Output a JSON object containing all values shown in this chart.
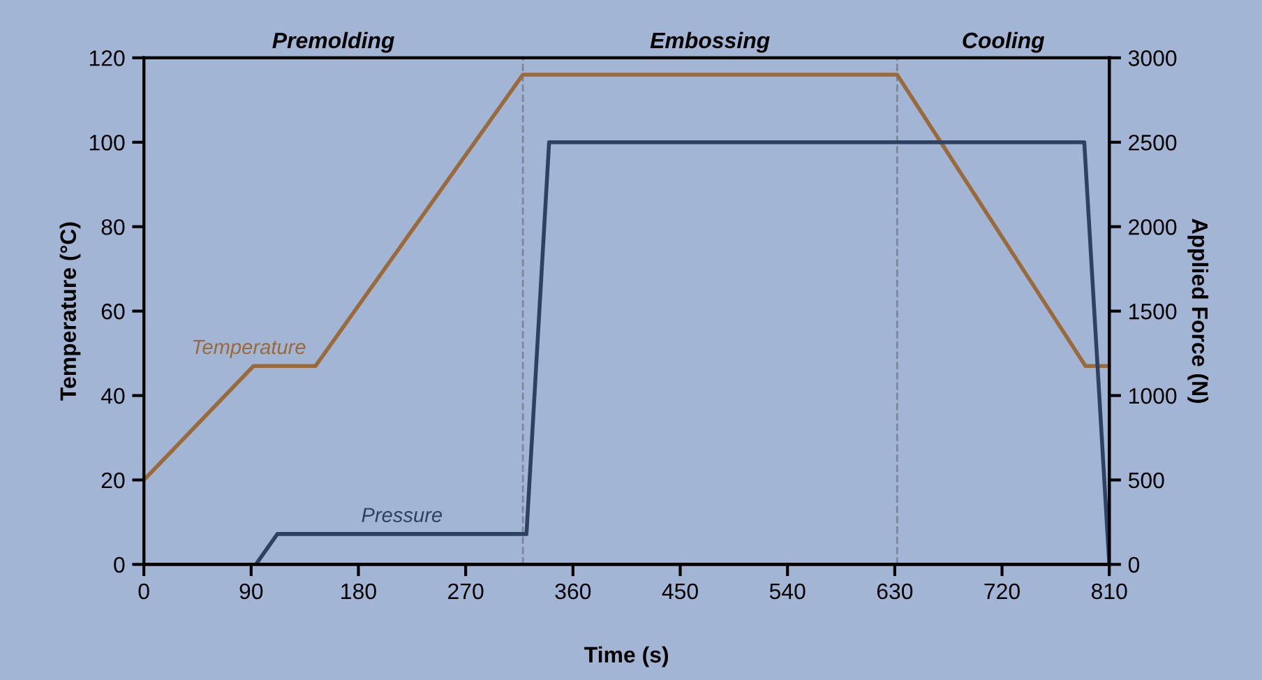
{
  "chart_data": {
    "type": "line",
    "xlabel": "Time (s)",
    "ylabel": "Temperature (°C)",
    "y2label": "Applied Force (N)",
    "series": [
      {
        "name": "Temperature",
        "color": "#9a6a3a",
        "x": [
          0,
          92,
          144,
          318,
          632,
          790,
          810
        ],
        "values": [
          20,
          47,
          47,
          116,
          116,
          47,
          47
        ]
      },
      {
        "name": "Pressure",
        "color": "#2f4163",
        "axis": "y2",
        "x": [
          94,
          112,
          321,
          340,
          789,
          810
        ],
        "values": [
          0,
          180,
          180,
          2500,
          2500,
          0
        ]
      }
    ],
    "xlim": [
      0,
      810
    ],
    "xticks": [
      0,
      90,
      180,
      270,
      360,
      450,
      540,
      630,
      720,
      810
    ],
    "ylim": [
      0,
      120
    ],
    "yticks": [
      0,
      20,
      40,
      60,
      80,
      100,
      120
    ],
    "y2lim": [
      0,
      3000
    ],
    "y2ticks": [
      0,
      500,
      1000,
      1500,
      2000,
      2500,
      3000
    ],
    "ref_lines": [
      {
        "axis": "x",
        "value": 318,
        "color": "#7a879c",
        "line_style": "dashed"
      },
      {
        "axis": "x",
        "value": 632,
        "color": "#7a879c",
        "line_style": "dashed"
      }
    ],
    "annotations": [
      "Premolding",
      "Embossing",
      "Cooling"
    ],
    "grid": false,
    "legend": false,
    "marker": "none",
    "line_style": "solid"
  }
}
